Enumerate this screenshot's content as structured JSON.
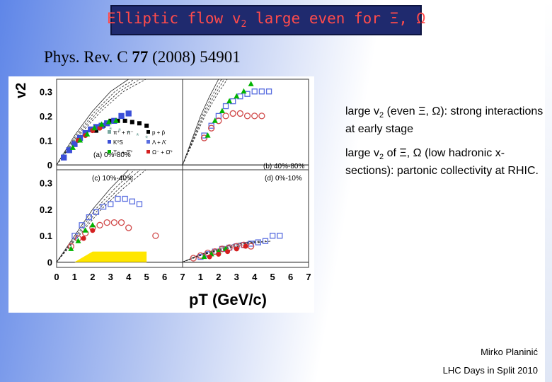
{
  "slide": {
    "title": {
      "prefix": "Elliptic flow v",
      "subscript": "2",
      "suffix": " large even for Ξ, Ω"
    },
    "citation": {
      "journal": "Phys. Rev. C ",
      "volume": "77",
      "rest": " (2008) 54901"
    },
    "bullets": [
      {
        "before": "large v",
        "sub": "2",
        "after": " (even  Ξ, Ω): strong interactions at early stage"
      },
      {
        "before": "large v",
        "sub": "2",
        "after": " of  Ξ, Ω (low hadronic x-sections): partonic collectivity at RHIC."
      }
    ],
    "footer": {
      "author": "Mirko Planinić",
      "event": "LHC Days in Split 2010"
    }
  },
  "chart_data": {
    "type": "scatter",
    "ylabel": "v2",
    "xlabel": "pT (GeV/c)",
    "x_ticks_left": [
      "0",
      "1",
      "2",
      "3",
      "4",
      "5",
      "6",
      "7"
    ],
    "x_ticks_right": [
      "1",
      "2",
      "3",
      "4",
      "5",
      "6",
      "7"
    ],
    "y_ticks": [
      "0",
      "0.1",
      "0.2",
      "0.3"
    ],
    "xlim": [
      0,
      7
    ],
    "ylim": [
      -0.02,
      0.35
    ],
    "panels": [
      {
        "label": "(a) 0%-80%",
        "position": "top-left"
      },
      {
        "label": "(b) 40%-80%",
        "position": "top-right"
      },
      {
        "label": "(c) 10%-40%",
        "position": "bottom-left"
      },
      {
        "label": "(d) 0%-10%",
        "position": "bottom-right"
      }
    ],
    "legend": [
      "π⁺ + π⁻",
      "p + p̄",
      "K⁰S",
      "Λ + Λ̄",
      "Ξ⁻ + Ξ̄⁺",
      "Ω⁻ + Ω̄⁺"
    ],
    "series_colors": {
      "pion": "#7aa9a0",
      "proton": "#000000",
      "kaon": "#3b4fd8",
      "lambda": "#5a6ee0",
      "xi": "#00b400",
      "omega": "#d42020",
      "kaon_open": "#d14b4b"
    },
    "series": [
      {
        "name": "pion",
        "panel": 0,
        "x": [
          0.4,
          0.7,
          1.0,
          1.3,
          1.6,
          1.9,
          2.2,
          2.6,
          3.0,
          3.5,
          4.0,
          4.5,
          5.0
        ],
        "y": [
          0.04,
          0.07,
          0.095,
          0.115,
          0.13,
          0.14,
          0.145,
          0.15,
          0.145,
          0.14,
          0.13,
          0.12,
          0.11
        ]
      },
      {
        "name": "proton",
        "panel": 0,
        "x": [
          2.2,
          2.6,
          3.0,
          3.4,
          3.8,
          4.2,
          4.6,
          5.0
        ],
        "y": [
          0.14,
          0.16,
          0.18,
          0.18,
          0.18,
          0.175,
          0.17,
          0.16
        ]
      },
      {
        "name": "kaon",
        "panel": 0,
        "x": [
          0.4,
          0.7,
          1.0,
          1.3,
          1.6,
          1.9,
          2.2,
          2.5,
          2.8,
          3.2,
          3.6,
          4.0
        ],
        "y": [
          0.03,
          0.06,
          0.085,
          0.11,
          0.13,
          0.145,
          0.155,
          0.16,
          0.17,
          0.18,
          0.2,
          0.21
        ]
      },
      {
        "name": "omega",
        "panel": 0,
        "x": [
          1.2,
          1.6,
          2.0,
          2.4
        ],
        "y": [
          0.1,
          0.12,
          0.14,
          0.15
        ]
      },
      {
        "name": "xi",
        "panel": 0,
        "x": [
          0.9,
          1.3,
          1.7,
          2.1,
          2.5,
          2.9,
          3.3
        ],
        "y": [
          0.07,
          0.1,
          0.125,
          0.15,
          0.165,
          0.175,
          0.18
        ]
      },
      {
        "name": "lambda",
        "panel": 1,
        "x": [
          1.2,
          1.6,
          2.0,
          2.4,
          2.8,
          3.2,
          3.6,
          4.0,
          4.4,
          4.8
        ],
        "y": [
          0.12,
          0.16,
          0.2,
          0.24,
          0.26,
          0.28,
          0.29,
          0.3,
          0.3,
          0.3
        ]
      },
      {
        "name": "kaon_open",
        "panel": 1,
        "x": [
          1.2,
          1.6,
          2.0,
          2.4,
          2.8,
          3.2,
          3.6,
          4.0,
          4.4
        ],
        "y": [
          0.11,
          0.15,
          0.18,
          0.2,
          0.21,
          0.21,
          0.2,
          0.2,
          0.2
        ]
      },
      {
        "name": "xi",
        "panel": 1,
        "x": [
          1.4,
          1.8,
          2.2,
          2.6,
          3.0,
          3.4,
          3.8
        ],
        "y": [
          0.12,
          0.18,
          0.22,
          0.26,
          0.28,
          0.3,
          0.33
        ]
      },
      {
        "name": "lambda",
        "panel": 2,
        "x": [
          1.0,
          1.4,
          1.8,
          2.2,
          2.6,
          3.0,
          3.4,
          3.8,
          4.2,
          4.6
        ],
        "y": [
          0.1,
          0.14,
          0.17,
          0.19,
          0.21,
          0.22,
          0.24,
          0.24,
          0.23,
          0.22
        ]
      },
      {
        "name": "kaon_open",
        "panel": 2,
        "x": [
          0.8,
          1.2,
          1.6,
          2.0,
          2.4,
          2.8,
          3.2,
          3.6,
          4.0,
          5.5
        ],
        "y": [
          0.06,
          0.09,
          0.11,
          0.13,
          0.14,
          0.15,
          0.15,
          0.15,
          0.13,
          0.1
        ]
      },
      {
        "name": "xi",
        "panel": 2,
        "x": [
          0.8,
          1.2,
          1.6,
          2.0
        ],
        "y": [
          0.05,
          0.08,
          0.12,
          0.14
        ]
      },
      {
        "name": "omega",
        "panel": 2,
        "x": [
          1.5,
          2.0
        ],
        "y": [
          0.09,
          0.12
        ]
      },
      {
        "name": "lambda",
        "panel": 3,
        "x": [
          1.0,
          1.4,
          1.8,
          2.2,
          2.6,
          3.0,
          3.4,
          3.8,
          4.2,
          4.6,
          5.0,
          5.4
        ],
        "y": [
          0.02,
          0.03,
          0.04,
          0.05,
          0.055,
          0.06,
          0.065,
          0.07,
          0.075,
          0.08,
          0.1,
          0.1
        ]
      },
      {
        "name": "kaon_open",
        "panel": 3,
        "x": [
          0.6,
          1.0,
          1.4,
          1.8,
          2.2,
          2.6,
          3.0,
          3.4,
          3.8
        ],
        "y": [
          0.015,
          0.025,
          0.035,
          0.04,
          0.05,
          0.055,
          0.06,
          0.065,
          0.06
        ]
      },
      {
        "name": "xi",
        "panel": 3,
        "x": [
          1.2,
          1.6,
          2.0,
          2.4
        ],
        "y": [
          0.02,
          0.03,
          0.04,
          0.05
        ]
      },
      {
        "name": "omega",
        "panel": 3,
        "x": [
          1.5,
          2.0,
          2.5,
          3.0,
          3.5
        ],
        "y": [
          0.02,
          0.03,
          0.04,
          0.05,
          0.06
        ]
      }
    ],
    "hydro_curves": [
      {
        "panel": 0,
        "x": [
          0,
          1,
          2,
          3,
          4
        ],
        "y": [
          0,
          0.12,
          0.22,
          0.3,
          0.35
        ]
      },
      {
        "panel": 1,
        "x": [
          0,
          0.5,
          1.0,
          1.5,
          2.0
        ],
        "y": [
          0,
          0.1,
          0.2,
          0.28,
          0.35
        ]
      },
      {
        "panel": 2,
        "x": [
          0,
          1,
          2,
          3,
          4
        ],
        "y": [
          0,
          0.1,
          0.2,
          0.28,
          0.35
        ]
      },
      {
        "panel": 3,
        "x": [
          0,
          1,
          2,
          3,
          4
        ],
        "y": [
          0,
          0.03,
          0.05,
          0.07,
          0.08
        ]
      }
    ],
    "yellow_band": {
      "panel": 2,
      "x": [
        1,
        5
      ],
      "y_low": 0,
      "y_high": 0.04
    }
  }
}
